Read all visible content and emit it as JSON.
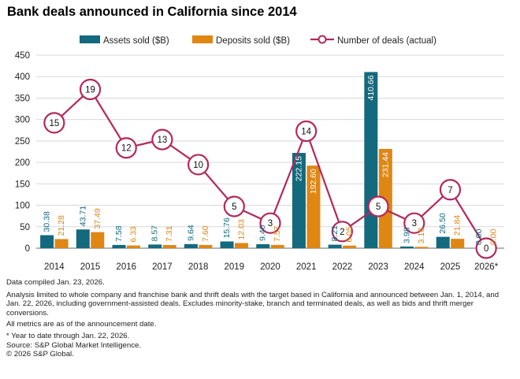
{
  "chart_data": {
    "type": "bar+line",
    "title": "Bank deals announced in California since 2014",
    "categories": [
      "2014",
      "2015",
      "2016",
      "2017",
      "2018",
      "2019",
      "2020",
      "2021",
      "2022",
      "2023",
      "2024",
      "2025",
      "2026*"
    ],
    "series": [
      {
        "name": "Assets sold ($B)",
        "color": "#13697e",
        "values": [
          30.38,
          43.71,
          7.58,
          8.57,
          9.64,
          15.76,
          9.4,
          222.15,
          8.21,
          410.66,
          3.98,
          26.5,
          0.0
        ],
        "labels": [
          "30.38",
          "43.71",
          "7.58",
          "8.57",
          "9.64",
          "15.76",
          "9.40",
          "222.15",
          "8.21",
          "410.66",
          "3.98",
          "26.50",
          "0.00"
        ]
      },
      {
        "name": "Deposits sold ($B)",
        "color": "#df8613",
        "values": [
          21.28,
          37.49,
          6.33,
          7.31,
          7.6,
          12.03,
          7.57,
          192.6,
          6.05,
          231.44,
          3.18,
          21.84,
          0.0
        ],
        "labels": [
          "21.28",
          "37.49",
          "6.33",
          "7.31",
          "7.60",
          "12.03",
          "7.57",
          "192.60",
          "6.05",
          "231.44",
          "3.18",
          "21.84",
          "0.00"
        ]
      },
      {
        "name": "Number of deals (actual)",
        "color": "#b3295d",
        "type": "line",
        "values": [
          15,
          19,
          12,
          13,
          10,
          5,
          3,
          14,
          2,
          5,
          3,
          7,
          0
        ],
        "labels": [
          "15",
          "19",
          "12",
          "13",
          "10",
          "5",
          "3",
          "14",
          "2",
          "5",
          "3",
          "7",
          "0"
        ]
      }
    ],
    "ylim": [
      0,
      450
    ],
    "yticks": [
      "0",
      "50",
      "100",
      "150",
      "200",
      "250",
      "300",
      "350",
      "400",
      "450"
    ],
    "line_scale_max": 23.1,
    "gridlines": true,
    "legend": "top"
  },
  "notes": {
    "compiled": "Data compiled Jan. 23, 2026.",
    "analysis": "Analysis limited to whole company and franchise bank and thrift deals with the target based in California and announced between Jan. 1, 2014, and Jan. 22, 2026, including government-assisted deals. Excludes minority-stake, branch and terminated deals, as well as bids and thrift merger conversions.",
    "metrics": "All metrics are as of the announcement date.",
    "ytd": "* Year to date through Jan. 22, 2026.",
    "source": "Source: S&P Global Market Intelligence.",
    "copyright": "© 2026 S&P Global."
  }
}
